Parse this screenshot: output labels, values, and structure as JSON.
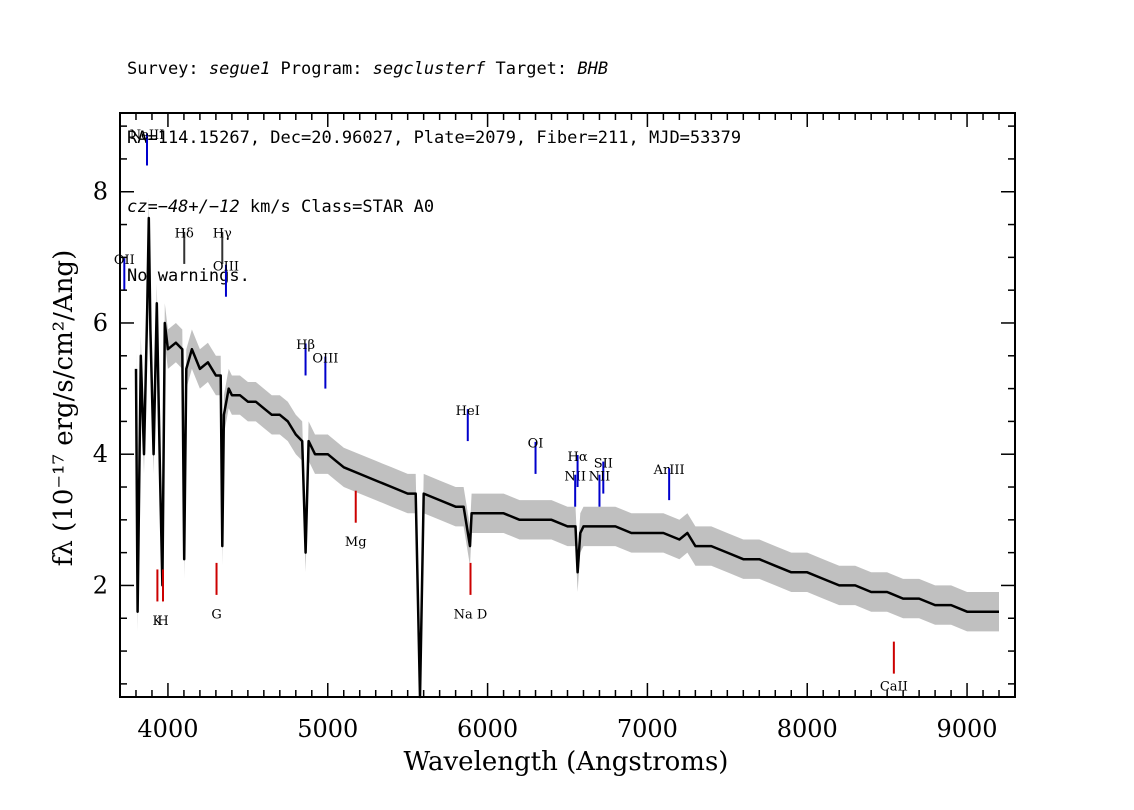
{
  "header": {
    "line1": {
      "survey_label": "Survey: ",
      "survey": "segue1",
      "program_label": " Program: ",
      "program": "segclusterf",
      "target_label": " Target: ",
      "target": "BHB"
    },
    "line2": "RA=114.15267, Dec=20.96027, Plate=2079, Fiber=211, MJD=53379",
    "line3": {
      "cz": "cz=−48+/−12",
      "rest": " km/s Class=STAR A0"
    },
    "line4": "No warnings."
  },
  "colors": {
    "flux": "#000000",
    "error_band": "#c0c0c0",
    "emission": "#0000cc",
    "absorption": "#cc0000"
  },
  "chart_data": {
    "type": "line",
    "xlabel": "Wavelength (Angstroms)",
    "ylabel": "fλ (10⁻¹⁷ erg/s/cm²/Ang)",
    "xlim": [
      3700,
      9300
    ],
    "ylim": [
      0.3,
      9.2
    ],
    "xticks": [
      4000,
      5000,
      6000,
      7000,
      8000,
      9000
    ],
    "yticks": [
      2,
      4,
      6,
      8
    ],
    "grid": false,
    "series": [
      {
        "x": [
          3800,
          3810,
          3830,
          3850,
          3870,
          3880,
          3890,
          3910,
          3930,
          3950,
          3965,
          3980,
          4000,
          4050,
          4090,
          4102,
          4115,
          4150,
          4200,
          4250,
          4300,
          4330,
          4340,
          4350,
          4380,
          4400,
          4450,
          4500,
          4550,
          4600,
          4650,
          4700,
          4750,
          4800,
          4840,
          4861,
          4880,
          4920,
          4950,
          5000,
          5050,
          5100,
          5200,
          5300,
          5400,
          5500,
          5550,
          5577,
          5600,
          5700,
          5800,
          5850,
          5890,
          5900,
          5950,
          6000,
          6100,
          6200,
          6300,
          6400,
          6500,
          6550,
          6563,
          6580,
          6600,
          6700,
          6800,
          6900,
          7000,
          7100,
          7200,
          7250,
          7300,
          7400,
          7500,
          7600,
          7700,
          7800,
          7900,
          8000,
          8100,
          8200,
          8300,
          8400,
          8500,
          8600,
          8700,
          8800,
          8900,
          9000,
          9100,
          9200
        ],
        "y": [
          5.3,
          1.6,
          5.5,
          4.0,
          6.2,
          7.6,
          5.9,
          4.0,
          6.3,
          3.7,
          2.0,
          6.0,
          5.6,
          5.7,
          5.6,
          2.4,
          5.3,
          5.6,
          5.3,
          5.4,
          5.2,
          5.2,
          2.6,
          4.6,
          5.0,
          4.9,
          4.9,
          4.8,
          4.8,
          4.7,
          4.6,
          4.6,
          4.5,
          4.3,
          4.2,
          2.5,
          4.2,
          4.0,
          4.0,
          4.0,
          3.9,
          3.8,
          3.7,
          3.6,
          3.5,
          3.4,
          3.4,
          0.3,
          3.4,
          3.3,
          3.2,
          3.2,
          2.6,
          3.1,
          3.1,
          3.1,
          3.1,
          3.0,
          3.0,
          3.0,
          2.9,
          2.9,
          2.2,
          2.8,
          2.9,
          2.9,
          2.9,
          2.8,
          2.8,
          2.8,
          2.7,
          2.8,
          2.6,
          2.6,
          2.5,
          2.4,
          2.4,
          2.3,
          2.2,
          2.2,
          2.1,
          2.0,
          2.0,
          1.9,
          1.9,
          1.8,
          1.8,
          1.7,
          1.7,
          1.6,
          1.6,
          1.6
        ]
      }
    ],
    "lines": [
      {
        "label": "OII",
        "wavelength": 3727,
        "type": "emission",
        "y": 6.5,
        "label_y": 6.9
      },
      {
        "label": "NeIII",
        "wavelength": 3869,
        "type": "emission",
        "y": 8.4,
        "label_y": 8.8
      },
      {
        "label": "Hδ",
        "wavelength": 4102,
        "type": "absorption-line",
        "y": 6.9,
        "label_y": 7.3
      },
      {
        "label": "Hγ",
        "wavelength": 4340,
        "type": "absorption-line",
        "y": 6.9,
        "label_y": 7.3
      },
      {
        "label": "OIII",
        "wavelength": 4363,
        "type": "emission",
        "y": 6.4,
        "label_y": 6.8
      },
      {
        "label": "Hβ",
        "wavelength": 4861,
        "type": "emission",
        "y": 5.2,
        "label_y": 5.6
      },
      {
        "label": "OIII",
        "wavelength": 4985,
        "type": "emission",
        "y": 5.0,
        "label_y": 5.4
      },
      {
        "label": "Mg",
        "wavelength": 5175,
        "type": "absorption",
        "y": 3.2,
        "label_y": 2.6
      },
      {
        "label": "HeI",
        "wavelength": 5876,
        "type": "emission",
        "y": 4.2,
        "label_y": 4.6
      },
      {
        "label": "Na D",
        "wavelength": 5893,
        "type": "absorption",
        "y": 2.1,
        "label_y": 1.5
      },
      {
        "label": "OI",
        "wavelength": 6300,
        "type": "emission",
        "y": 3.7,
        "label_y": 4.1
      },
      {
        "label": "NII",
        "wavelength": 6548,
        "type": "emission",
        "y": 3.2,
        "label_y": 3.6
      },
      {
        "label": "Hα",
        "wavelength": 6563,
        "type": "emission",
        "y": 3.5,
        "label_y": 3.9
      },
      {
        "label": "SII",
        "wavelength": 6724,
        "type": "emission",
        "y": 3.4,
        "label_y": 3.8
      },
      {
        "label": "NII",
        "wavelength": 6700,
        "type": "emission",
        "y": 3.2,
        "label_y": 3.6
      },
      {
        "label": "ArIII",
        "wavelength": 7136,
        "type": "emission",
        "y": 3.3,
        "label_y": 3.7
      },
      {
        "label": "K",
        "wavelength": 3934,
        "type": "absorption",
        "y": 2.0,
        "label_y": 1.4
      },
      {
        "label": "H",
        "wavelength": 3969,
        "type": "absorption",
        "y": 2.0,
        "label_y": 1.4
      },
      {
        "label": "G",
        "wavelength": 4304,
        "type": "absorption",
        "y": 2.1,
        "label_y": 1.5
      },
      {
        "label": "CaII",
        "wavelength": 8542,
        "type": "absorption",
        "y": 0.9,
        "label_y": 0.4
      }
    ]
  }
}
